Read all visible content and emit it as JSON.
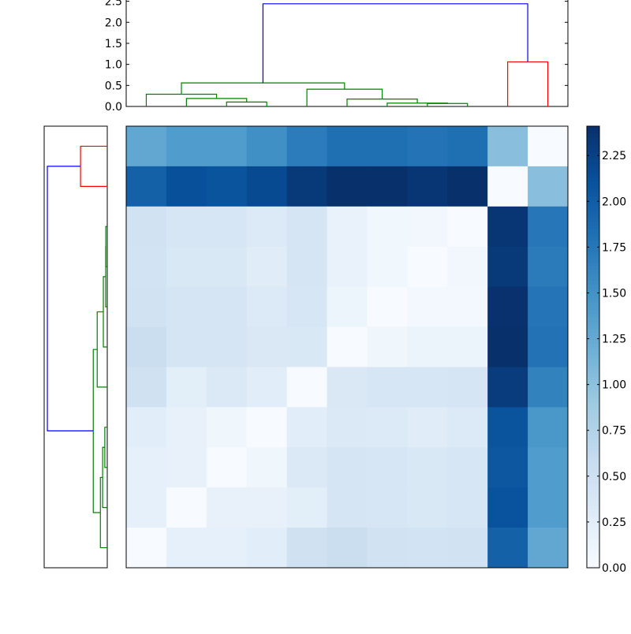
{
  "chart_data": [
    {
      "type": "dendrogram",
      "orientation": "top",
      "ylim": [
        0,
        2.53
      ],
      "yticks": [
        "0.0",
        "0.5",
        "1.0",
        "1.5",
        "2.0",
        "2.5"
      ],
      "ytick_values": [
        0,
        0.5,
        1.0,
        1.5,
        2.0,
        2.5
      ],
      "links": [
        {
          "x": [
            2,
            2,
            3,
            3
          ],
          "y": [
            0,
            0.106,
            0.106,
            0
          ],
          "color": "#008000"
        },
        {
          "x": [
            1,
            1,
            2.5,
            2.5
          ],
          "y": [
            0,
            0.19,
            0.19,
            0.106
          ],
          "color": "#008000"
        },
        {
          "x": [
            0,
            0,
            1.75,
            1.75
          ],
          "y": [
            0,
            0.29,
            0.29,
            0.19
          ],
          "color": "#008000"
        },
        {
          "x": [
            7,
            7,
            8,
            8
          ],
          "y": [
            0,
            0.07,
            0.07,
            0
          ],
          "color": "#008000"
        },
        {
          "x": [
            6,
            6,
            7.5,
            7.5
          ],
          "y": [
            0,
            0.08,
            0.08,
            0.07
          ],
          "color": "#008000"
        },
        {
          "x": [
            5,
            5,
            6.75,
            6.75
          ],
          "y": [
            0,
            0.175,
            0.175,
            0.08
          ],
          "color": "#008000"
        },
        {
          "x": [
            4,
            4,
            5.875,
            5.875
          ],
          "y": [
            0,
            0.41,
            0.41,
            0.175
          ],
          "color": "#008000"
        },
        {
          "x": [
            0.875,
            0.875,
            4.9375,
            4.9375
          ],
          "y": [
            0.29,
            0.56,
            0.56,
            0.41
          ],
          "color": "#008000"
        },
        {
          "x": [
            9,
            9,
            10,
            10
          ],
          "y": [
            0,
            1.06,
            1.06,
            0
          ],
          "color": "#ff0000"
        },
        {
          "x": [
            2.906,
            2.906,
            9.5,
            9.5
          ],
          "y": [
            0.56,
            2.44,
            2.44,
            1.06
          ],
          "color": "#0000ff"
        }
      ]
    },
    {
      "type": "dendrogram",
      "orientation": "left",
      "xlim": [
        2.57,
        0
      ],
      "links": [
        {
          "y": [
            2,
            2,
            3,
            3
          ],
          "x": [
            0,
            0.06,
            0.06,
            0
          ],
          "color": "#008000"
        },
        {
          "y": [
            2.5,
            2.5,
            4,
            4
          ],
          "x": [
            0.06,
            0.065,
            0.065,
            0
          ],
          "color": "#008000"
        },
        {
          "y": [
            3.25,
            3.25,
            5,
            5
          ],
          "x": [
            0.065,
            0.16,
            0.16,
            0
          ],
          "color": "#008000"
        },
        {
          "y": [
            4.125,
            4.125,
            6,
            6
          ],
          "x": [
            0.16,
            0.41,
            0.41,
            0
          ],
          "color": "#008000"
        },
        {
          "y": [
            7,
            7,
            8,
            8
          ],
          "x": [
            0,
            0.1,
            0.1,
            0
          ],
          "color": "#008000"
        },
        {
          "y": [
            7.5,
            7.5,
            9,
            9
          ],
          "x": [
            0.1,
            0.19,
            0.19,
            0
          ],
          "color": "#008000"
        },
        {
          "y": [
            8.25,
            8.25,
            10,
            10
          ],
          "x": [
            0.19,
            0.28,
            0.28,
            0
          ],
          "color": "#008000"
        },
        {
          "y": [
            5.0625,
            5.0625,
            9.125,
            9.125
          ],
          "x": [
            0.41,
            0.57,
            0.57,
            0.28
          ],
          "color": "#008000"
        },
        {
          "y": [
            0,
            0,
            1,
            1
          ],
          "x": [
            0,
            1.09,
            1.09,
            0
          ],
          "color": "#ff0000"
        },
        {
          "y": [
            0.5,
            0.5,
            7.09,
            7.09
          ],
          "x": [
            1.09,
            2.44,
            2.44,
            0.57
          ],
          "color": "#0000ff"
        }
      ]
    },
    {
      "type": "heatmap",
      "colormap": "Blues",
      "vmin": 0,
      "vmax": 2.41,
      "values": [
        [
          1.28,
          1.4,
          1.4,
          1.52,
          1.71,
          1.83,
          1.83,
          1.79,
          1.83,
          1.03,
          0.0
        ],
        [
          1.96,
          2.12,
          2.08,
          2.17,
          2.32,
          2.41,
          2.41,
          2.36,
          2.41,
          0.0,
          1.03
        ],
        [
          0.47,
          0.4,
          0.4,
          0.33,
          0.42,
          0.17,
          0.08,
          0.07,
          0.0,
          2.36,
          1.75
        ],
        [
          0.45,
          0.36,
          0.36,
          0.28,
          0.42,
          0.17,
          0.08,
          0.0,
          0.07,
          2.32,
          1.72
        ],
        [
          0.46,
          0.41,
          0.42,
          0.33,
          0.4,
          0.12,
          0.0,
          0.06,
          0.06,
          2.4,
          1.78
        ],
        [
          0.55,
          0.42,
          0.42,
          0.35,
          0.36,
          0.0,
          0.1,
          0.14,
          0.15,
          2.41,
          1.8
        ],
        [
          0.48,
          0.25,
          0.34,
          0.26,
          0.0,
          0.35,
          0.4,
          0.4,
          0.42,
          2.3,
          1.65
        ],
        [
          0.27,
          0.18,
          0.1,
          0.0,
          0.26,
          0.34,
          0.33,
          0.28,
          0.33,
          2.08,
          1.45
        ],
        [
          0.2,
          0.18,
          0.0,
          0.1,
          0.34,
          0.41,
          0.4,
          0.36,
          0.4,
          2.05,
          1.4
        ],
        [
          0.2,
          0.0,
          0.18,
          0.18,
          0.25,
          0.42,
          0.4,
          0.36,
          0.4,
          2.1,
          1.4
        ],
        [
          0.0,
          0.2,
          0.2,
          0.27,
          0.48,
          0.55,
          0.47,
          0.45,
          0.47,
          1.96,
          1.28
        ]
      ]
    },
    {
      "type": "colorbar",
      "ticks": [
        "0.00",
        "0.25",
        "0.50",
        "0.75",
        "1.00",
        "1.25",
        "1.50",
        "1.75",
        "2.00",
        "2.25"
      ],
      "tick_values": [
        0,
        0.25,
        0.5,
        0.75,
        1.0,
        1.25,
        1.5,
        1.75,
        2.0,
        2.25
      ]
    }
  ]
}
